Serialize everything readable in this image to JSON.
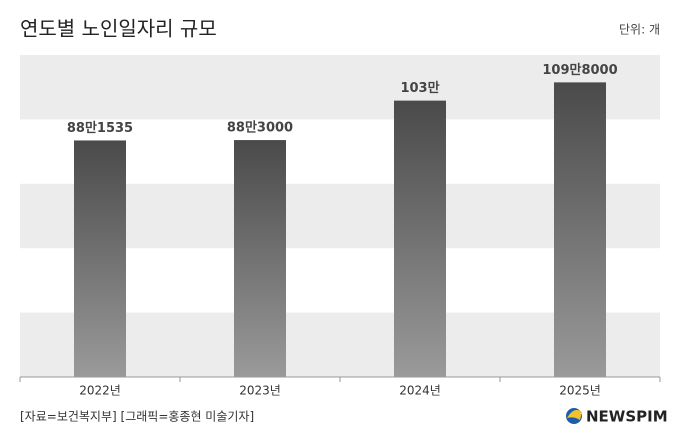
{
  "chart_data": {
    "type": "bar",
    "title": "연도별 노인일자리 규모",
    "unit": "단위: 개",
    "categories": [
      "2022년",
      "2023년",
      "2024년",
      "2025년"
    ],
    "values": [
      881535,
      883000,
      1030000,
      1098000
    ],
    "value_labels": [
      "88만1535",
      "88만3000",
      "103만",
      "109만8000"
    ],
    "color": "#4a4a4a",
    "ylim": [
      0,
      1200000
    ],
    "source": "[자료=보건복지부] [그래픽=홍종현 미술기자]",
    "logo": "NEWSPIM"
  }
}
